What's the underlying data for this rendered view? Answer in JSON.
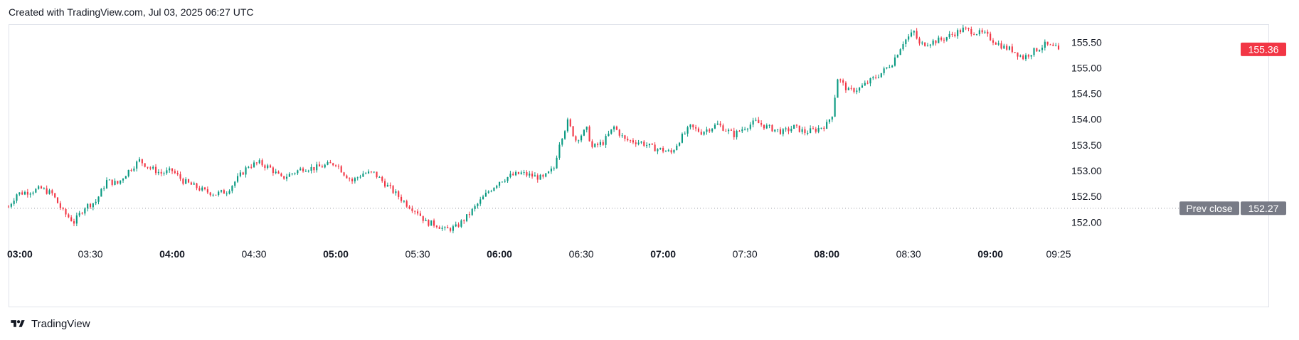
{
  "header": {
    "caption": "Created with TradingView.com, Jul 03, 2025 06:27 UTC"
  },
  "footer": {
    "brand": "TradingView"
  },
  "colors": {
    "up": "#089981",
    "down": "#f23645",
    "grid": "#e0e3eb",
    "prev_close_line": "#9598a1",
    "label_bg": "#787b86"
  },
  "chart_data": {
    "type": "candlestick",
    "title": "",
    "xlabel": "",
    "ylabel": "",
    "interval_minutes": 1,
    "time_range": [
      "03:00",
      "09:25"
    ],
    "ylim": [
      151.7,
      155.85
    ],
    "y_ticks": [
      "152.00",
      "152.50",
      "153.00",
      "153.50",
      "154.00",
      "154.50",
      "155.00",
      "155.50"
    ],
    "x_ticks": [
      {
        "label": "03:00",
        "bold": true
      },
      {
        "label": "03:30",
        "bold": false
      },
      {
        "label": "04:00",
        "bold": true
      },
      {
        "label": "04:30",
        "bold": false
      },
      {
        "label": "05:00",
        "bold": true
      },
      {
        "label": "05:30",
        "bold": false
      },
      {
        "label": "06:00",
        "bold": true
      },
      {
        "label": "06:30",
        "bold": false
      },
      {
        "label": "07:00",
        "bold": true
      },
      {
        "label": "07:30",
        "bold": false
      },
      {
        "label": "08:00",
        "bold": true
      },
      {
        "label": "08:30",
        "bold": false
      },
      {
        "label": "09:00",
        "bold": true
      },
      {
        "label": "09:25",
        "bold": false
      }
    ],
    "close_path": [
      [
        "03:00",
        152.3
      ],
      [
        "03:03",
        152.55
      ],
      [
        "03:08",
        152.6
      ],
      [
        "03:12",
        152.65
      ],
      [
        "03:16",
        152.55
      ],
      [
        "03:20",
        152.2
      ],
      [
        "03:24",
        152.0
      ],
      [
        "03:28",
        152.3
      ],
      [
        "03:32",
        152.4
      ],
      [
        "03:36",
        152.8
      ],
      [
        "03:40",
        152.75
      ],
      [
        "03:44",
        153.0
      ],
      [
        "03:48",
        153.2
      ],
      [
        "03:52",
        153.05
      ],
      [
        "03:56",
        152.95
      ],
      [
        "04:00",
        153.0
      ],
      [
        "04:04",
        152.8
      ],
      [
        "04:08",
        152.7
      ],
      [
        "04:12",
        152.6
      ],
      [
        "04:16",
        152.55
      ],
      [
        "04:20",
        152.6
      ],
      [
        "04:24",
        152.85
      ],
      [
        "04:28",
        153.1
      ],
      [
        "04:32",
        153.15
      ],
      [
        "04:36",
        153.05
      ],
      [
        "04:40",
        152.85
      ],
      [
        "04:44",
        152.95
      ],
      [
        "04:48",
        153.05
      ],
      [
        "04:52",
        153.05
      ],
      [
        "04:56",
        153.1
      ],
      [
        "05:00",
        153.15
      ],
      [
        "05:03",
        152.95
      ],
      [
        "05:06",
        152.8
      ],
      [
        "05:10",
        152.95
      ],
      [
        "05:14",
        152.95
      ],
      [
        "05:18",
        152.75
      ],
      [
        "05:22",
        152.55
      ],
      [
        "05:26",
        152.35
      ],
      [
        "05:30",
        152.2
      ],
      [
        "05:33",
        152.0
      ],
      [
        "05:37",
        151.95
      ],
      [
        "05:40",
        151.85
      ],
      [
        "05:44",
        151.9
      ],
      [
        "05:48",
        152.1
      ],
      [
        "05:52",
        152.35
      ],
      [
        "05:56",
        152.6
      ],
      [
        "06:00",
        152.8
      ],
      [
        "06:04",
        152.9
      ],
      [
        "06:08",
        152.95
      ],
      [
        "06:12",
        152.9
      ],
      [
        "06:16",
        152.85
      ],
      [
        "06:20",
        153.05
      ],
      [
        "06:22",
        153.55
      ],
      [
        "06:25",
        153.95
      ],
      [
        "06:28",
        153.6
      ],
      [
        "06:32",
        153.8
      ],
      [
        "06:34",
        153.45
      ],
      [
        "06:38",
        153.55
      ],
      [
        "06:42",
        153.85
      ],
      [
        "06:46",
        153.6
      ],
      [
        "06:52",
        153.55
      ],
      [
        "06:56",
        153.45
      ],
      [
        "07:00",
        153.4
      ],
      [
        "07:03",
        153.35
      ],
      [
        "07:06",
        153.6
      ],
      [
        "07:10",
        153.85
      ],
      [
        "07:14",
        153.75
      ],
      [
        "07:20",
        153.9
      ],
      [
        "07:26",
        153.7
      ],
      [
        "07:30",
        153.85
      ],
      [
        "07:34",
        153.95
      ],
      [
        "07:38",
        153.85
      ],
      [
        "07:44",
        153.75
      ],
      [
        "07:48",
        153.85
      ],
      [
        "07:52",
        153.75
      ],
      [
        "07:56",
        153.8
      ],
      [
        "08:00",
        153.9
      ],
      [
        "08:02",
        154.1
      ],
      [
        "08:04",
        154.8
      ],
      [
        "08:08",
        154.55
      ],
      [
        "08:12",
        154.6
      ],
      [
        "08:16",
        154.75
      ],
      [
        "08:20",
        154.9
      ],
      [
        "08:24",
        155.1
      ],
      [
        "08:28",
        155.5
      ],
      [
        "08:32",
        155.7
      ],
      [
        "08:34",
        155.45
      ],
      [
        "08:38",
        155.5
      ],
      [
        "08:42",
        155.55
      ],
      [
        "08:46",
        155.65
      ],
      [
        "08:50",
        155.75
      ],
      [
        "08:54",
        155.7
      ],
      [
        "08:58",
        155.65
      ],
      [
        "09:02",
        155.5
      ],
      [
        "09:05",
        155.4
      ],
      [
        "09:08",
        155.35
      ],
      [
        "09:12",
        155.2
      ],
      [
        "09:15",
        155.3
      ],
      [
        "09:20",
        155.45
      ],
      [
        "09:25",
        155.36
      ]
    ],
    "last_price": {
      "label": "155.36",
      "value": 155.36,
      "color": "#f23645"
    },
    "prev_close": {
      "label": "Prev close",
      "value_label": "152.27",
      "value": 152.27
    }
  }
}
